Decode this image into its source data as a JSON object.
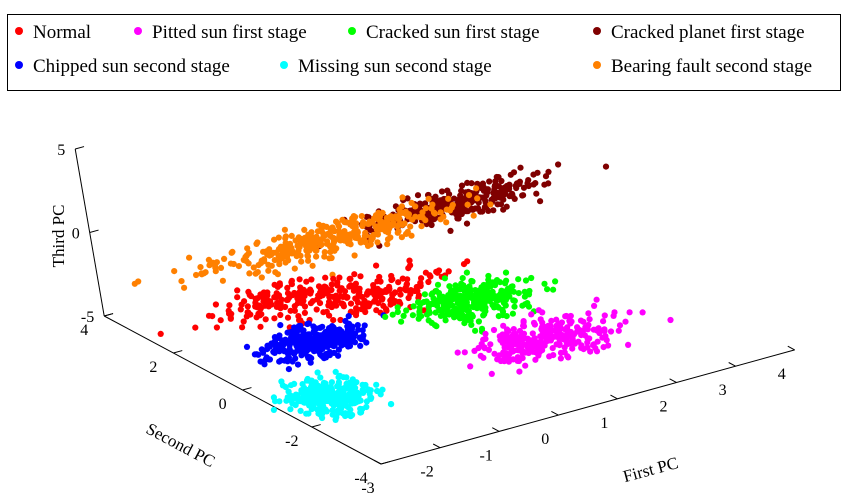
{
  "chart_data": {
    "type": "scatter",
    "title": "",
    "legend_position": "top",
    "xlabel": "First PC",
    "ylabel": "Second PC",
    "zlabel": "Third PC",
    "xlim": [
      -3,
      4
    ],
    "ylim": [
      -4,
      4
    ],
    "zlim": [
      -5,
      5
    ],
    "x_ticks": [
      "-3",
      "-2",
      "-1",
      "0",
      "1",
      "2",
      "3",
      "4"
    ],
    "y_ticks": [
      "-4",
      "-2",
      "0",
      "2",
      "4"
    ],
    "z_ticks": [
      "-5",
      "0",
      "5"
    ],
    "grid": false,
    "series": [
      {
        "name": "Normal",
        "color": "#ff0000",
        "clusters": [
          {
            "center": [
              -2.15,
              -0.15,
              -0.25
            ],
            "spread": [
              0.55,
              0.3,
              0.18
            ],
            "count": 150
          },
          {
            "center": [
              -0.85,
              -0.55,
              -0.8
            ],
            "spread": [
              0.6,
              0.3,
              0.3
            ],
            "count": 160
          }
        ]
      },
      {
        "name": "Pitted sun first stage",
        "color": "#ff00ff",
        "clusters": [
          {
            "center": [
              0.5,
              -3.05,
              -2.0
            ],
            "spread": [
              0.55,
              0.35,
              0.25
            ],
            "count": 300
          }
        ]
      },
      {
        "name": "Cracked sun first stage",
        "color": "#00ff00",
        "clusters": [
          {
            "center": [
              0.15,
              -1.6,
              -1.0
            ],
            "spread": [
              0.45,
              0.3,
              0.4
            ],
            "count": 300
          }
        ]
      },
      {
        "name": "Cracked planet first stage",
        "color": "#800000",
        "clusters": [
          {
            "center": [
              1.75,
              1.5,
              -0.1
            ],
            "spread": [
              0.75,
              0.25,
              0.22
            ],
            "count": 300
          }
        ]
      },
      {
        "name": "Chipped sun second stage",
        "color": "#0000ff",
        "clusters": [
          {
            "center": [
              -2.2,
              -1.0,
              -1.8
            ],
            "spread": [
              0.4,
              0.25,
              0.3
            ],
            "count": 300
          }
        ]
      },
      {
        "name": "Missing sun second stage",
        "color": "#00ffff",
        "clusters": [
          {
            "center": [
              -2.9,
              -2.6,
              -2.6
            ],
            "spread": [
              0.3,
              0.35,
              0.3
            ],
            "count": 280
          }
        ]
      },
      {
        "name": "Bearing fault second stage",
        "color": "#ff8000",
        "clusters": [
          {
            "center": [
              -0.5,
              1.45,
              -0.05
            ],
            "spread": [
              1.05,
              0.3,
              0.2
            ],
            "count": 360
          }
        ]
      }
    ]
  }
}
